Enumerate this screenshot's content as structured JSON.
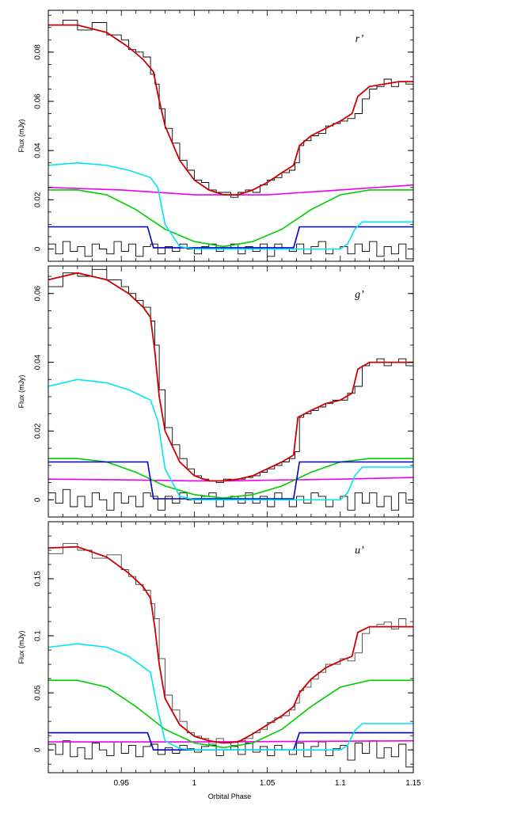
{
  "figure": {
    "xlabel": "Orbital Phase",
    "x_range": [
      0.9,
      1.15
    ],
    "x_ticks": [
      0.95,
      1.0,
      1.05,
      1.1,
      1.15
    ],
    "x_tick_labels": [
      "0.95",
      "1",
      "1.05",
      "1.1",
      "1.15"
    ]
  },
  "colors": {
    "data": "#000000",
    "model": "#cc0000",
    "white_dwarf": "#0000cc",
    "bright_spot": "#00e5ee",
    "disc": "#00cc00",
    "secondary": "#ee00ee"
  },
  "chart_data": [
    {
      "type": "line",
      "label": "r’",
      "ylabel": "Flux (mJy)",
      "ylim": [
        -0.005,
        0.097
      ],
      "y_ticks": [
        0,
        0.02,
        0.04,
        0.06,
        0.08
      ],
      "y_tick_labels": [
        "0",
        "0.02",
        "0.04",
        "0.06",
        "0.08"
      ],
      "model": {
        "x": [
          0.9,
          0.92,
          0.94,
          0.955,
          0.965,
          0.972,
          0.975,
          0.98,
          0.99,
          1.0,
          1.01,
          1.02,
          1.03,
          1.04,
          1.05,
          1.06,
          1.068,
          1.072,
          1.08,
          1.09,
          1.1,
          1.108,
          1.112,
          1.12,
          1.13,
          1.14,
          1.15
        ],
        "y": [
          0.091,
          0.091,
          0.088,
          0.082,
          0.077,
          0.072,
          0.063,
          0.05,
          0.036,
          0.028,
          0.024,
          0.022,
          0.022,
          0.024,
          0.027,
          0.031,
          0.034,
          0.042,
          0.046,
          0.049,
          0.052,
          0.055,
          0.062,
          0.066,
          0.067,
          0.068,
          0.068
        ]
      },
      "white_dwarf": {
        "x": [
          0.9,
          0.968,
          0.972,
          1.068,
          1.072,
          1.15
        ],
        "y": [
          0.009,
          0.009,
          0.0005,
          0.0005,
          0.009,
          0.009
        ]
      },
      "bright_spot": {
        "x": [
          0.9,
          0.92,
          0.94,
          0.955,
          0.97,
          0.975,
          0.98,
          0.99,
          1.0,
          1.05,
          1.1,
          1.105,
          1.11,
          1.115,
          1.15
        ],
        "y": [
          0.034,
          0.035,
          0.034,
          0.032,
          0.029,
          0.025,
          0.01,
          0.001,
          0.0,
          0.0,
          0.0,
          0.002,
          0.008,
          0.011,
          0.011
        ]
      },
      "disc": {
        "x": [
          0.9,
          0.92,
          0.94,
          0.96,
          0.98,
          1.0,
          1.02,
          1.04,
          1.06,
          1.08,
          1.1,
          1.12,
          1.15
        ],
        "y": [
          0.024,
          0.024,
          0.022,
          0.016,
          0.008,
          0.003,
          0.001,
          0.003,
          0.008,
          0.016,
          0.022,
          0.024,
          0.024
        ]
      },
      "secondary": {
        "x": [
          0.9,
          0.95,
          1.0,
          1.025,
          1.05,
          1.1,
          1.15
        ],
        "y": [
          0.025,
          0.024,
          0.022,
          0.022,
          0.022,
          0.024,
          0.026
        ]
      },
      "data": {
        "x": [
          0.9,
          0.91,
          0.92,
          0.93,
          0.94,
          0.95,
          0.955,
          0.96,
          0.965,
          0.97,
          0.973,
          0.976,
          0.98,
          0.985,
          0.99,
          0.995,
          1.0,
          1.005,
          1.01,
          1.015,
          1.02,
          1.025,
          1.03,
          1.035,
          1.04,
          1.045,
          1.05,
          1.055,
          1.06,
          1.065,
          1.069,
          1.072,
          1.075,
          1.08,
          1.085,
          1.09,
          1.095,
          1.1,
          1.105,
          1.11,
          1.115,
          1.12,
          1.125,
          1.13,
          1.135,
          1.14,
          1.145,
          1.15
        ],
        "y": [
          0.091,
          0.093,
          0.089,
          0.092,
          0.087,
          0.085,
          0.081,
          0.08,
          0.078,
          0.071,
          0.067,
          0.057,
          0.049,
          0.043,
          0.036,
          0.032,
          0.028,
          0.027,
          0.024,
          0.023,
          0.023,
          0.021,
          0.023,
          0.024,
          0.023,
          0.026,
          0.028,
          0.029,
          0.031,
          0.032,
          0.035,
          0.042,
          0.044,
          0.046,
          0.047,
          0.05,
          0.051,
          0.052,
          0.053,
          0.055,
          0.061,
          0.065,
          0.066,
          0.069,
          0.066,
          0.068,
          0.067,
          0.069
        ]
      },
      "residuals": {
        "x": [
          0.9,
          0.905,
          0.91,
          0.915,
          0.92,
          0.925,
          0.93,
          0.935,
          0.94,
          0.945,
          0.95,
          0.955,
          0.96,
          0.965,
          0.97,
          0.975,
          0.98,
          0.985,
          0.99,
          0.995,
          1.0,
          1.005,
          1.01,
          1.015,
          1.02,
          1.025,
          1.03,
          1.035,
          1.04,
          1.045,
          1.05,
          1.055,
          1.06,
          1.065,
          1.07,
          1.075,
          1.08,
          1.085,
          1.09,
          1.095,
          1.1,
          1.105,
          1.11,
          1.115,
          1.12,
          1.125,
          1.13,
          1.135,
          1.14,
          1.145,
          1.15
        ],
        "y": [
          0.002,
          -0.002,
          0.003,
          -0.001,
          0.001,
          -0.003,
          0.002,
          0.0,
          -0.002,
          0.003,
          -0.001,
          0.002,
          -0.003,
          0.001,
          0.002,
          -0.002,
          0.001,
          -0.001,
          0.002,
          0.0,
          -0.002,
          0.001,
          0.002,
          -0.001,
          0.0,
          0.002,
          -0.002,
          0.001,
          -0.001,
          0.002,
          -0.003,
          0.002,
          0.0,
          -0.001,
          0.002,
          -0.002,
          0.001,
          0.003,
          -0.002,
          0.0,
          0.001,
          -0.002,
          0.002,
          -0.001,
          0.003,
          -0.003,
          0.001,
          -0.002,
          0.002,
          -0.004,
          0.0
        ]
      }
    },
    {
      "type": "line",
      "label": "g’",
      "ylabel": "Flux (mJy)",
      "ylim": [
        -0.005,
        0.068
      ],
      "y_ticks": [
        0,
        0.02,
        0.04,
        0.06
      ],
      "y_tick_labels": [
        "0",
        "0.02",
        "0.04",
        "0.06"
      ],
      "model": {
        "x": [
          0.9,
          0.92,
          0.94,
          0.955,
          0.965,
          0.97,
          0.973,
          0.976,
          0.98,
          0.99,
          1.0,
          1.01,
          1.02,
          1.03,
          1.04,
          1.05,
          1.06,
          1.068,
          1.071,
          1.08,
          1.09,
          1.1,
          1.108,
          1.112,
          1.12,
          1.13,
          1.14,
          1.15
        ],
        "y": [
          0.064,
          0.066,
          0.064,
          0.06,
          0.056,
          0.053,
          0.043,
          0.03,
          0.02,
          0.011,
          0.007,
          0.0055,
          0.0055,
          0.006,
          0.007,
          0.009,
          0.011,
          0.013,
          0.024,
          0.026,
          0.028,
          0.029,
          0.031,
          0.038,
          0.04,
          0.04,
          0.04,
          0.04
        ]
      },
      "white_dwarf": {
        "x": [
          0.9,
          0.968,
          0.972,
          1.068,
          1.072,
          1.15
        ],
        "y": [
          0.011,
          0.011,
          0.0003,
          0.0003,
          0.011,
          0.011
        ]
      },
      "bright_spot": {
        "x": [
          0.9,
          0.92,
          0.94,
          0.955,
          0.97,
          0.975,
          0.98,
          0.99,
          1.0,
          1.05,
          1.1,
          1.105,
          1.11,
          1.115,
          1.15
        ],
        "y": [
          0.033,
          0.035,
          0.034,
          0.032,
          0.029,
          0.023,
          0.009,
          0.001,
          0.0,
          0.0,
          0.0,
          0.002,
          0.007,
          0.0095,
          0.0095
        ]
      },
      "disc": {
        "x": [
          0.9,
          0.92,
          0.94,
          0.96,
          0.98,
          1.0,
          1.02,
          1.04,
          1.06,
          1.08,
          1.1,
          1.12,
          1.15
        ],
        "y": [
          0.012,
          0.012,
          0.011,
          0.008,
          0.004,
          0.0015,
          0.0005,
          0.0015,
          0.004,
          0.008,
          0.011,
          0.012,
          0.012
        ]
      },
      "secondary": {
        "x": [
          0.9,
          0.95,
          1.0,
          1.025,
          1.05,
          1.1,
          1.15
        ],
        "y": [
          0.006,
          0.0058,
          0.0055,
          0.0055,
          0.0057,
          0.006,
          0.0065
        ]
      },
      "data": {
        "x": [
          0.9,
          0.91,
          0.92,
          0.93,
          0.94,
          0.95,
          0.955,
          0.96,
          0.965,
          0.97,
          0.973,
          0.976,
          0.98,
          0.985,
          0.99,
          0.995,
          1.0,
          1.005,
          1.01,
          1.015,
          1.02,
          1.025,
          1.03,
          1.035,
          1.04,
          1.045,
          1.05,
          1.055,
          1.06,
          1.065,
          1.069,
          1.072,
          1.075,
          1.08,
          1.085,
          1.09,
          1.095,
          1.1,
          1.105,
          1.11,
          1.115,
          1.12,
          1.125,
          1.13,
          1.135,
          1.14,
          1.145,
          1.15
        ],
        "y": [
          0.062,
          0.066,
          0.065,
          0.067,
          0.064,
          0.062,
          0.06,
          0.058,
          0.056,
          0.052,
          0.045,
          0.032,
          0.021,
          0.016,
          0.012,
          0.009,
          0.007,
          0.006,
          0.0055,
          0.005,
          0.006,
          0.0055,
          0.006,
          0.0065,
          0.007,
          0.008,
          0.009,
          0.01,
          0.011,
          0.012,
          0.014,
          0.024,
          0.025,
          0.026,
          0.027,
          0.028,
          0.029,
          0.029,
          0.031,
          0.033,
          0.039,
          0.04,
          0.041,
          0.039,
          0.04,
          0.041,
          0.039,
          0.04
        ]
      },
      "residuals": {
        "x": [
          0.9,
          0.905,
          0.91,
          0.915,
          0.92,
          0.925,
          0.93,
          0.935,
          0.94,
          0.945,
          0.95,
          0.955,
          0.96,
          0.965,
          0.97,
          0.975,
          0.98,
          0.985,
          0.99,
          0.995,
          1.0,
          1.005,
          1.01,
          1.015,
          1.02,
          1.025,
          1.03,
          1.035,
          1.04,
          1.045,
          1.05,
          1.055,
          1.06,
          1.065,
          1.07,
          1.075,
          1.08,
          1.085,
          1.09,
          1.095,
          1.1,
          1.105,
          1.11,
          1.115,
          1.12,
          1.125,
          1.13,
          1.135,
          1.14,
          1.145,
          1.15
        ],
        "y": [
          0.002,
          -0.001,
          0.003,
          -0.002,
          0.001,
          -0.002,
          0.002,
          0.0,
          -0.003,
          0.002,
          -0.001,
          0.001,
          -0.002,
          0.002,
          0.001,
          -0.003,
          0.001,
          -0.001,
          0.002,
          0.0,
          -0.001,
          0.001,
          0.002,
          -0.002,
          0.0,
          0.001,
          -0.001,
          0.002,
          -0.001,
          0.001,
          -0.002,
          0.002,
          0.0,
          -0.002,
          0.001,
          -0.001,
          0.002,
          0.001,
          -0.002,
          0.0,
          0.001,
          -0.003,
          0.002,
          -0.001,
          0.002,
          -0.002,
          0.001,
          -0.003,
          0.002,
          -0.001,
          0.001
        ]
      }
    },
    {
      "type": "line",
      "label": "u’",
      "ylabel": "Flux (mJy)",
      "ylim": [
        -0.02,
        0.2
      ],
      "y_ticks": [
        0,
        0.05,
        0.1,
        0.15
      ],
      "y_tick_labels": [
        "0",
        "0.05",
        "0.1",
        "0.15"
      ],
      "model": {
        "x": [
          0.9,
          0.92,
          0.94,
          0.955,
          0.965,
          0.97,
          0.973,
          0.976,
          0.98,
          0.99,
          1.0,
          1.01,
          1.02,
          1.03,
          1.04,
          1.05,
          1.06,
          1.068,
          1.072,
          1.08,
          1.09,
          1.1,
          1.108,
          1.112,
          1.12,
          1.13,
          1.14,
          1.15
        ],
        "y": [
          0.177,
          0.178,
          0.169,
          0.155,
          0.143,
          0.133,
          0.107,
          0.075,
          0.045,
          0.022,
          0.012,
          0.008,
          0.006,
          0.007,
          0.014,
          0.022,
          0.03,
          0.038,
          0.05,
          0.062,
          0.072,
          0.078,
          0.082,
          0.103,
          0.108,
          0.108,
          0.108,
          0.108
        ]
      },
      "white_dwarf": {
        "x": [
          0.9,
          0.968,
          0.972,
          1.068,
          1.072,
          1.15
        ],
        "y": [
          0.015,
          0.015,
          0.0,
          0.0,
          0.015,
          0.015
        ]
      },
      "bright_spot": {
        "x": [
          0.9,
          0.92,
          0.94,
          0.955,
          0.97,
          0.975,
          0.98,
          0.99,
          1.0,
          1.05,
          1.1,
          1.105,
          1.11,
          1.115,
          1.15
        ],
        "y": [
          0.09,
          0.093,
          0.09,
          0.082,
          0.068,
          0.035,
          0.008,
          0.001,
          0.0,
          0.0,
          0.0,
          0.004,
          0.017,
          0.023,
          0.023
        ]
      },
      "disc": {
        "x": [
          0.9,
          0.92,
          0.94,
          0.96,
          0.98,
          1.0,
          1.02,
          1.04,
          1.06,
          1.08,
          1.1,
          1.12,
          1.15
        ],
        "y": [
          0.061,
          0.061,
          0.055,
          0.038,
          0.018,
          0.006,
          0.002,
          0.006,
          0.018,
          0.038,
          0.055,
          0.061,
          0.061
        ]
      },
      "secondary": {
        "x": [
          0.9,
          1.0,
          1.15
        ],
        "y": [
          0.007,
          0.007,
          0.008
        ]
      },
      "data": {
        "x": [
          0.9,
          0.91,
          0.92,
          0.93,
          0.94,
          0.95,
          0.955,
          0.96,
          0.965,
          0.97,
          0.973,
          0.976,
          0.98,
          0.985,
          0.99,
          0.995,
          1.0,
          1.005,
          1.01,
          1.015,
          1.02,
          1.025,
          1.03,
          1.035,
          1.04,
          1.045,
          1.05,
          1.055,
          1.06,
          1.065,
          1.069,
          1.072,
          1.075,
          1.08,
          1.085,
          1.09,
          1.095,
          1.1,
          1.105,
          1.11,
          1.115,
          1.12,
          1.125,
          1.13,
          1.135,
          1.14,
          1.145,
          1.15
        ],
        "y": [
          0.172,
          0.181,
          0.175,
          0.168,
          0.171,
          0.158,
          0.152,
          0.145,
          0.14,
          0.128,
          0.115,
          0.08,
          0.048,
          0.035,
          0.025,
          0.015,
          0.012,
          0.01,
          0.005,
          0.01,
          0.006,
          0.004,
          0.008,
          0.01,
          0.015,
          0.018,
          0.024,
          0.028,
          0.03,
          0.035,
          0.041,
          0.052,
          0.055,
          0.062,
          0.068,
          0.075,
          0.075,
          0.08,
          0.078,
          0.085,
          0.102,
          0.108,
          0.11,
          0.112,
          0.106,
          0.115,
          0.108,
          0.111
        ]
      },
      "residuals": {
        "x": [
          0.9,
          0.905,
          0.91,
          0.915,
          0.92,
          0.925,
          0.93,
          0.935,
          0.94,
          0.945,
          0.95,
          0.955,
          0.96,
          0.965,
          0.97,
          0.975,
          0.98,
          0.985,
          0.99,
          0.995,
          1.0,
          1.005,
          1.01,
          1.015,
          1.02,
          1.025,
          1.03,
          1.035,
          1.04,
          1.045,
          1.05,
          1.055,
          1.06,
          1.065,
          1.07,
          1.075,
          1.08,
          1.085,
          1.09,
          1.095,
          1.1,
          1.105,
          1.11,
          1.115,
          1.12,
          1.125,
          1.13,
          1.135,
          1.14,
          1.145,
          1.15
        ],
        "y": [
          0.005,
          -0.004,
          0.008,
          -0.006,
          0.002,
          -0.008,
          0.006,
          0.0,
          -0.005,
          0.007,
          -0.003,
          0.004,
          -0.006,
          0.003,
          0.005,
          -0.004,
          0.002,
          -0.003,
          0.004,
          0.001,
          -0.002,
          0.003,
          0.004,
          -0.005,
          0.0,
          0.003,
          -0.004,
          0.006,
          -0.002,
          0.003,
          -0.005,
          0.004,
          0.0,
          -0.004,
          0.006,
          -0.006,
          0.003,
          0.007,
          -0.005,
          0.001,
          0.004,
          -0.009,
          0.006,
          -0.003,
          0.008,
          -0.007,
          0.002,
          -0.006,
          0.005,
          -0.015,
          0.002
        ]
      }
    }
  ]
}
